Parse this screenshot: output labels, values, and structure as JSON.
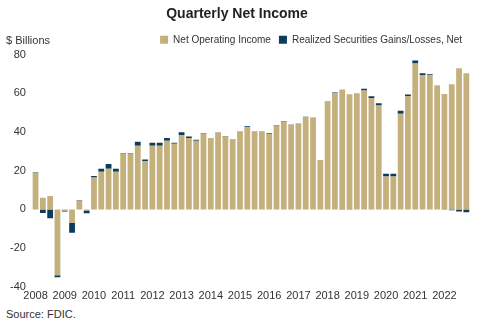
{
  "chart_data": {
    "type": "bar",
    "title": "Quarterly Net Income",
    "ylabel": "$ Billions",
    "caption": "Source: FDIC.",
    "categories": [
      "2008",
      null,
      null,
      null,
      "2009",
      null,
      null,
      null,
      "2010",
      null,
      null,
      null,
      "2011",
      null,
      null,
      null,
      "2012",
      null,
      null,
      null,
      "2013",
      null,
      null,
      null,
      "2014",
      null,
      null,
      null,
      "2015",
      null,
      null,
      null,
      "2016",
      null,
      null,
      null,
      "2017",
      null,
      null,
      null,
      "2018",
      null,
      null,
      null,
      "2019",
      null,
      null,
      null,
      "2020",
      null,
      null,
      null,
      "2021",
      null,
      null,
      null,
      "2022",
      null,
      null,
      null
    ],
    "series": [
      {
        "name": "Realized Securities Gains/Losses, Net",
        "color": "#0d3b5e",
        "values": [
          0.3,
          -1.8,
          -4.5,
          -1,
          -0.5,
          -5,
          0.3,
          -1.5,
          0.8,
          1.5,
          2.5,
          1.5,
          0.3,
          0.3,
          2,
          0.8,
          1.5,
          1.5,
          1.5,
          0.5,
          1.5,
          0.8,
          0.5,
          0.3,
          0.2,
          0.2,
          0.2,
          0.2,
          0.2,
          0.3,
          0.2,
          0.2,
          0.3,
          0.2,
          0.2,
          0.2,
          0.2,
          0.2,
          0.2,
          0.1,
          0.1,
          0.2,
          -0.2,
          -0.2,
          0.2,
          1,
          0.8,
          1.2,
          1.5,
          1.5,
          1.5,
          1,
          1.5,
          1,
          0.4,
          0.2,
          -0.2,
          -0.4,
          -1,
          -1.5
        ]
      },
      {
        "name": "Net Operating Income",
        "color": "#c4b07c",
        "values": [
          19,
          6,
          7,
          -34,
          -0.5,
          -7,
          4.5,
          -0.5,
          16.5,
          19.5,
          21,
          19.5,
          28.7,
          28.7,
          33,
          25,
          33,
          33,
          35.5,
          34,
          38.5,
          37,
          35.5,
          39,
          36.8,
          39.8,
          37.8,
          36.3,
          40.3,
          42.7,
          40.3,
          40.3,
          39.2,
          43.3,
          45.3,
          43.8,
          44.3,
          47.8,
          47.3,
          25.5,
          56,
          60.3,
          62,
          59.6,
          59.8,
          61.5,
          57.7,
          53.8,
          17,
          17,
          49.5,
          58.5,
          75.5,
          69.5,
          69.6,
          63.8,
          59.7,
          64.8,
          73,
          70.5
        ]
      }
    ],
    "stacked": true,
    "ylim": [
      -40,
      80
    ],
    "yticks": [
      -40,
      -20,
      0,
      20,
      40,
      60,
      80
    ],
    "grid": false,
    "legend": "top-right"
  }
}
